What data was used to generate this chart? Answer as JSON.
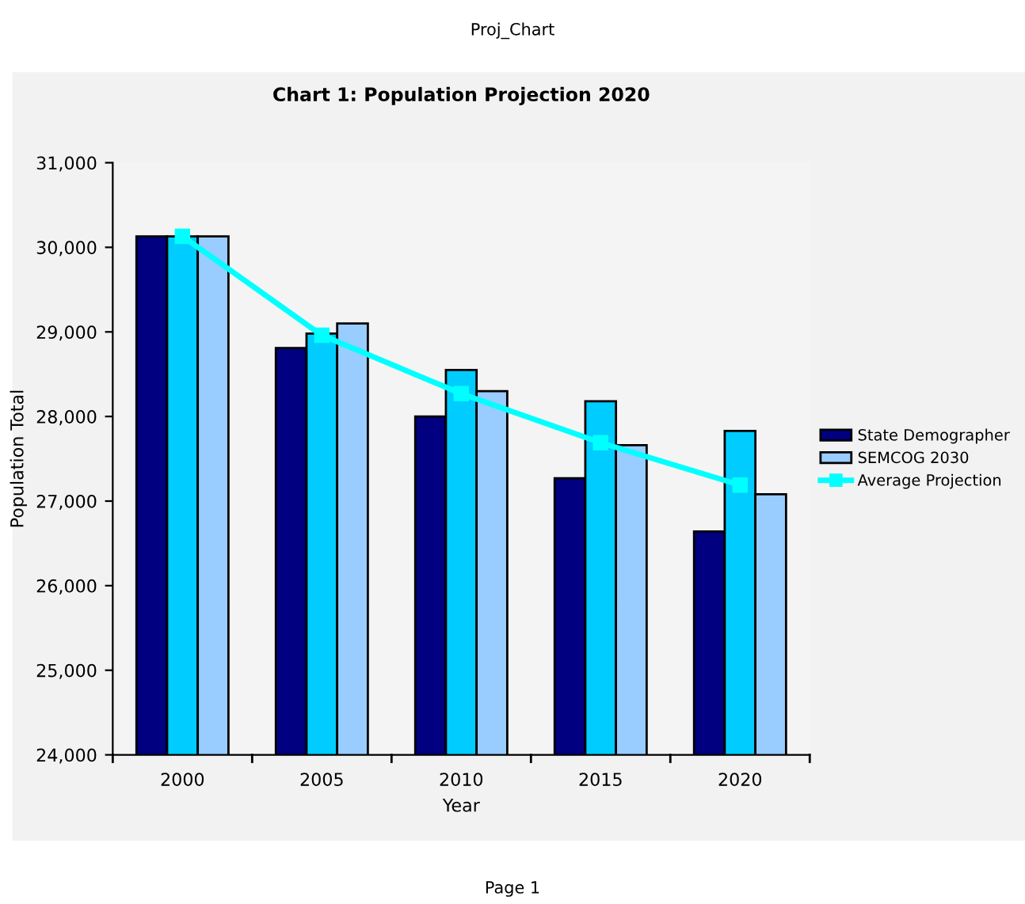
{
  "chart_data": {
    "type": "bar",
    "title": "Chart 1: Population Projection 2020",
    "xlabel": "Year",
    "ylabel": "Population Total",
    "categories": [
      "2000",
      "2005",
      "2010",
      "2015",
      "2020"
    ],
    "series": [
      {
        "name": "State Demographer",
        "color": "#000080",
        "values": [
          30130,
          28810,
          28000,
          27270,
          26640
        ]
      },
      {
        "color": "#00ccff",
        "values": [
          30130,
          28980,
          28550,
          28180,
          27830
        ]
      },
      {
        "name": "SEMCOG 2030",
        "color": "#99ccff",
        "values": [
          30130,
          29100,
          28300,
          27660,
          27080
        ]
      },
      {
        "name": "Average Projection",
        "type": "line",
        "color": "#00ffff",
        "marker": "square",
        "values": [
          30130,
          28960,
          28270,
          27690,
          27190
        ]
      }
    ],
    "ylim": [
      24000,
      31000
    ],
    "yticks": [
      {
        "value": 24000,
        "label": "24,000"
      },
      {
        "value": 25000,
        "label": "25,000"
      },
      {
        "value": 26000,
        "label": "26,000"
      },
      {
        "value": 27000,
        "label": "27,000"
      },
      {
        "value": 28000,
        "label": "28,000"
      },
      {
        "value": 29000,
        "label": "29,000"
      },
      {
        "value": 30000,
        "label": "30,000"
      },
      {
        "value": 31000,
        "label": "31,000"
      }
    ],
    "grid": false,
    "legend": "right",
    "annotations": [
      "Proj_Chart",
      "Page 1"
    ]
  }
}
